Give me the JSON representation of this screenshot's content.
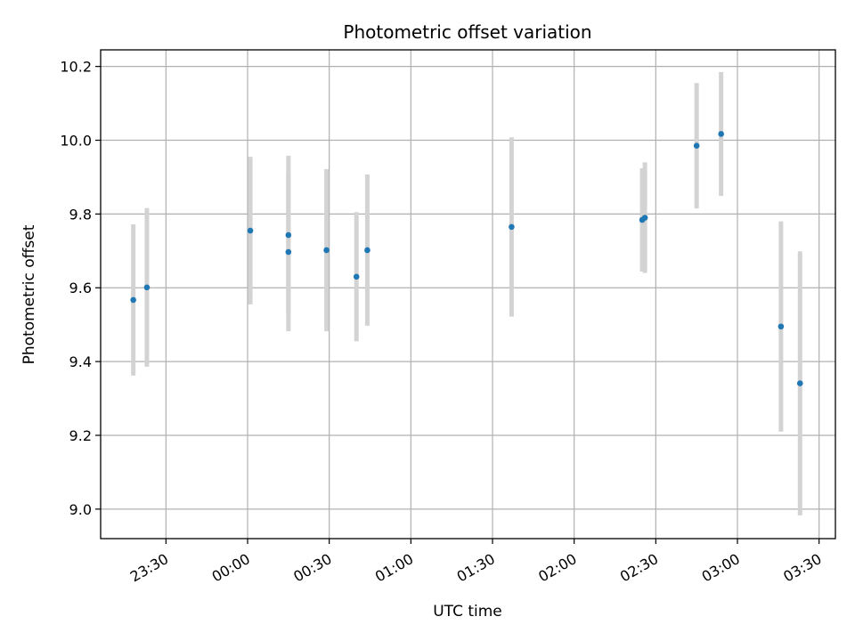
{
  "chart_data": {
    "type": "scatter",
    "title": "Photometric offset variation",
    "xlabel": "UTC time",
    "ylabel": "Photometric offset",
    "x_scale": "time",
    "x_ticks": [
      "23:30",
      "00:00",
      "00:30",
      "01:00",
      "01:30",
      "02:00",
      "02:30",
      "03:00",
      "03:30"
    ],
    "xlim": [
      "23:06",
      "03:36"
    ],
    "ylim": [
      8.92,
      10.245
    ],
    "y_ticks": [
      9.0,
      9.2,
      9.4,
      9.6,
      9.8,
      10.0,
      10.2
    ],
    "y_tick_labels": [
      "9.0",
      "9.2",
      "9.4",
      "9.6",
      "9.8",
      "10.0",
      "10.2"
    ],
    "grid": true,
    "colors": {
      "point": "#1f77b4",
      "errorbar": "#d3d3d3",
      "grid": "#b0b0b0"
    },
    "points": [
      {
        "x": "23:18",
        "y": 9.567,
        "err": 0.205
      },
      {
        "x": "23:23",
        "y": 9.601,
        "err": 0.215
      },
      {
        "x": "00:01",
        "y": 9.755,
        "err": 0.2
      },
      {
        "x": "00:15",
        "y": 9.743,
        "err": 0.215
      },
      {
        "x": "00:15",
        "y": 9.697,
        "err": 0.215
      },
      {
        "x": "00:29",
        "y": 9.702,
        "err": 0.22
      },
      {
        "x": "00:40",
        "y": 9.63,
        "err": 0.175
      },
      {
        "x": "00:44",
        "y": 9.702,
        "err": 0.205
      },
      {
        "x": "01:37",
        "y": 9.765,
        "err": 0.243
      },
      {
        "x": "02:25",
        "y": 9.784,
        "err": 0.14
      },
      {
        "x": "02:26",
        "y": 9.79,
        "err": 0.15
      },
      {
        "x": "02:45",
        "y": 9.985,
        "err": 0.17
      },
      {
        "x": "02:54",
        "y": 10.017,
        "err": 0.168
      },
      {
        "x": "03:16",
        "y": 9.495,
        "err": 0.285
      },
      {
        "x": "03:23",
        "y": 9.341,
        "err": 0.358
      }
    ]
  }
}
